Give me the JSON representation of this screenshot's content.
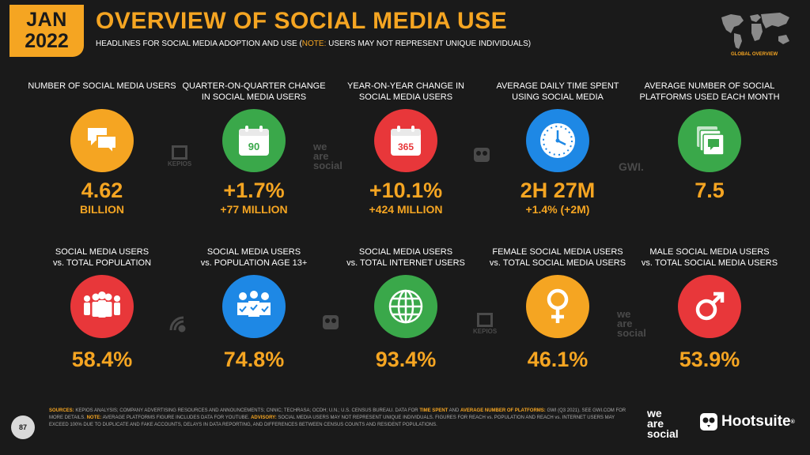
{
  "header": {
    "month": "JAN",
    "year": "2022",
    "title": "OVERVIEW OF SOCIAL MEDIA USE",
    "subtitle_prefix": "HEADLINES FOR SOCIAL MEDIA ADOPTION AND USE (",
    "subtitle_note_label": "NOTE:",
    "subtitle_suffix": " USERS MAY NOT REPRESENT UNIQUE INDIVIDUALS)",
    "global_label": "GLOBAL OVERVIEW"
  },
  "row1": [
    {
      "label": "NUMBER OF SOCIAL MEDIA USERS",
      "value": "4.62",
      "sub": "BILLION",
      "color": "#f5a522",
      "icon": "chat-bubbles-icon"
    },
    {
      "label": "QUARTER-ON-QUARTER CHANGE IN SOCIAL MEDIA USERS",
      "value": "+1.7%",
      "sub": "+77 MILLION",
      "color": "#3aa84a",
      "icon": "calendar-90-icon",
      "icon_text": "90"
    },
    {
      "label": "YEAR-ON-YEAR CHANGE IN SOCIAL MEDIA USERS",
      "value": "+10.1%",
      "sub": "+424 MILLION",
      "color": "#e8373a",
      "icon": "calendar-365-icon",
      "icon_text": "365"
    },
    {
      "label": "AVERAGE DAILY TIME SPENT USING SOCIAL MEDIA",
      "value": "2H 27M",
      "sub": "+1.4% (+2M)",
      "color": "#1e88e5",
      "icon": "clock-icon"
    },
    {
      "label": "AVERAGE NUMBER OF SOCIAL PLATFORMS USED EACH MONTH",
      "value": "7.5",
      "sub": "",
      "color": "#3aa84a",
      "icon": "stacked-platforms-icon"
    }
  ],
  "row2": [
    {
      "label_line1": "SOCIAL MEDIA USERS",
      "label_line2": "vs. TOTAL POPULATION",
      "value": "58.4%",
      "color": "#e8373a",
      "icon": "population-icon"
    },
    {
      "label_line1": "SOCIAL MEDIA USERS",
      "label_line2": "vs. POPULATION AGE 13+",
      "value": "74.8%",
      "color": "#1e88e5",
      "icon": "people-check-icon"
    },
    {
      "label_line1": "SOCIAL MEDIA USERS",
      "label_line2": "vs. TOTAL INTERNET USERS",
      "value": "93.4%",
      "color": "#3aa84a",
      "icon": "globe-icon"
    },
    {
      "label_line1": "FEMALE SOCIAL MEDIA USERS",
      "label_line2": "vs. TOTAL SOCIAL MEDIA USERS",
      "value": "46.1%",
      "color": "#f5a522",
      "icon": "female-icon"
    },
    {
      "label_line1": "MALE SOCIAL MEDIA USERS",
      "label_line2": "vs. TOTAL SOCIAL MEDIA USERS",
      "value": "53.9%",
      "color": "#e8373a",
      "icon": "male-icon"
    }
  ],
  "watermarks": {
    "kepios": "KEPIOS",
    "we": "we",
    "are": "are",
    "social": "social",
    "gwi": "GWI."
  },
  "footer": {
    "page_number": "87",
    "sources_label": "SOURCES:",
    "sources_text": " KEPIOS ANALYSIS; COMPANY ADVERTISING RESOURCES AND ANNOUNCEMENTS; CNNIC; TECHRASA; OCDH; U.N.; U.S. CENSUS BUREAU. DATA FOR ",
    "time_spent_label": "TIME SPENT",
    "and": " AND ",
    "avg_label": "AVERAGE NUMBER OF PLATFORMS:",
    "gwi_text": " GWI (Q3 2021). SEE GWI.COM FOR MORE DETAILS. ",
    "note_label": "NOTE:",
    "note_text": " AVERAGE PLATFORMS FIGURE INCLUDES DATA FOR YOUTUBE. ",
    "advisory_label": "ADVISORY:",
    "advisory_text": " SOCIAL MEDIA USERS MAY NOT REPRESENT UNIQUE INDIVIDUALS. FIGURES FOR REACH vs. POPULATION AND REACH vs. INTERNET USERS MAY EXCEED 100% DUE TO DUPLICATE AND FAKE ACCOUNTS, DELAYS IN DATA REPORTING, AND DIFFERENCES BETWEEN CENSUS COUNTS AND RESIDENT POPULATIONS.",
    "brand_we": "we",
    "brand_are": "are",
    "brand_social": "social",
    "brand_hootsuite": "Hootsuite",
    "brand_trademark": "®"
  }
}
